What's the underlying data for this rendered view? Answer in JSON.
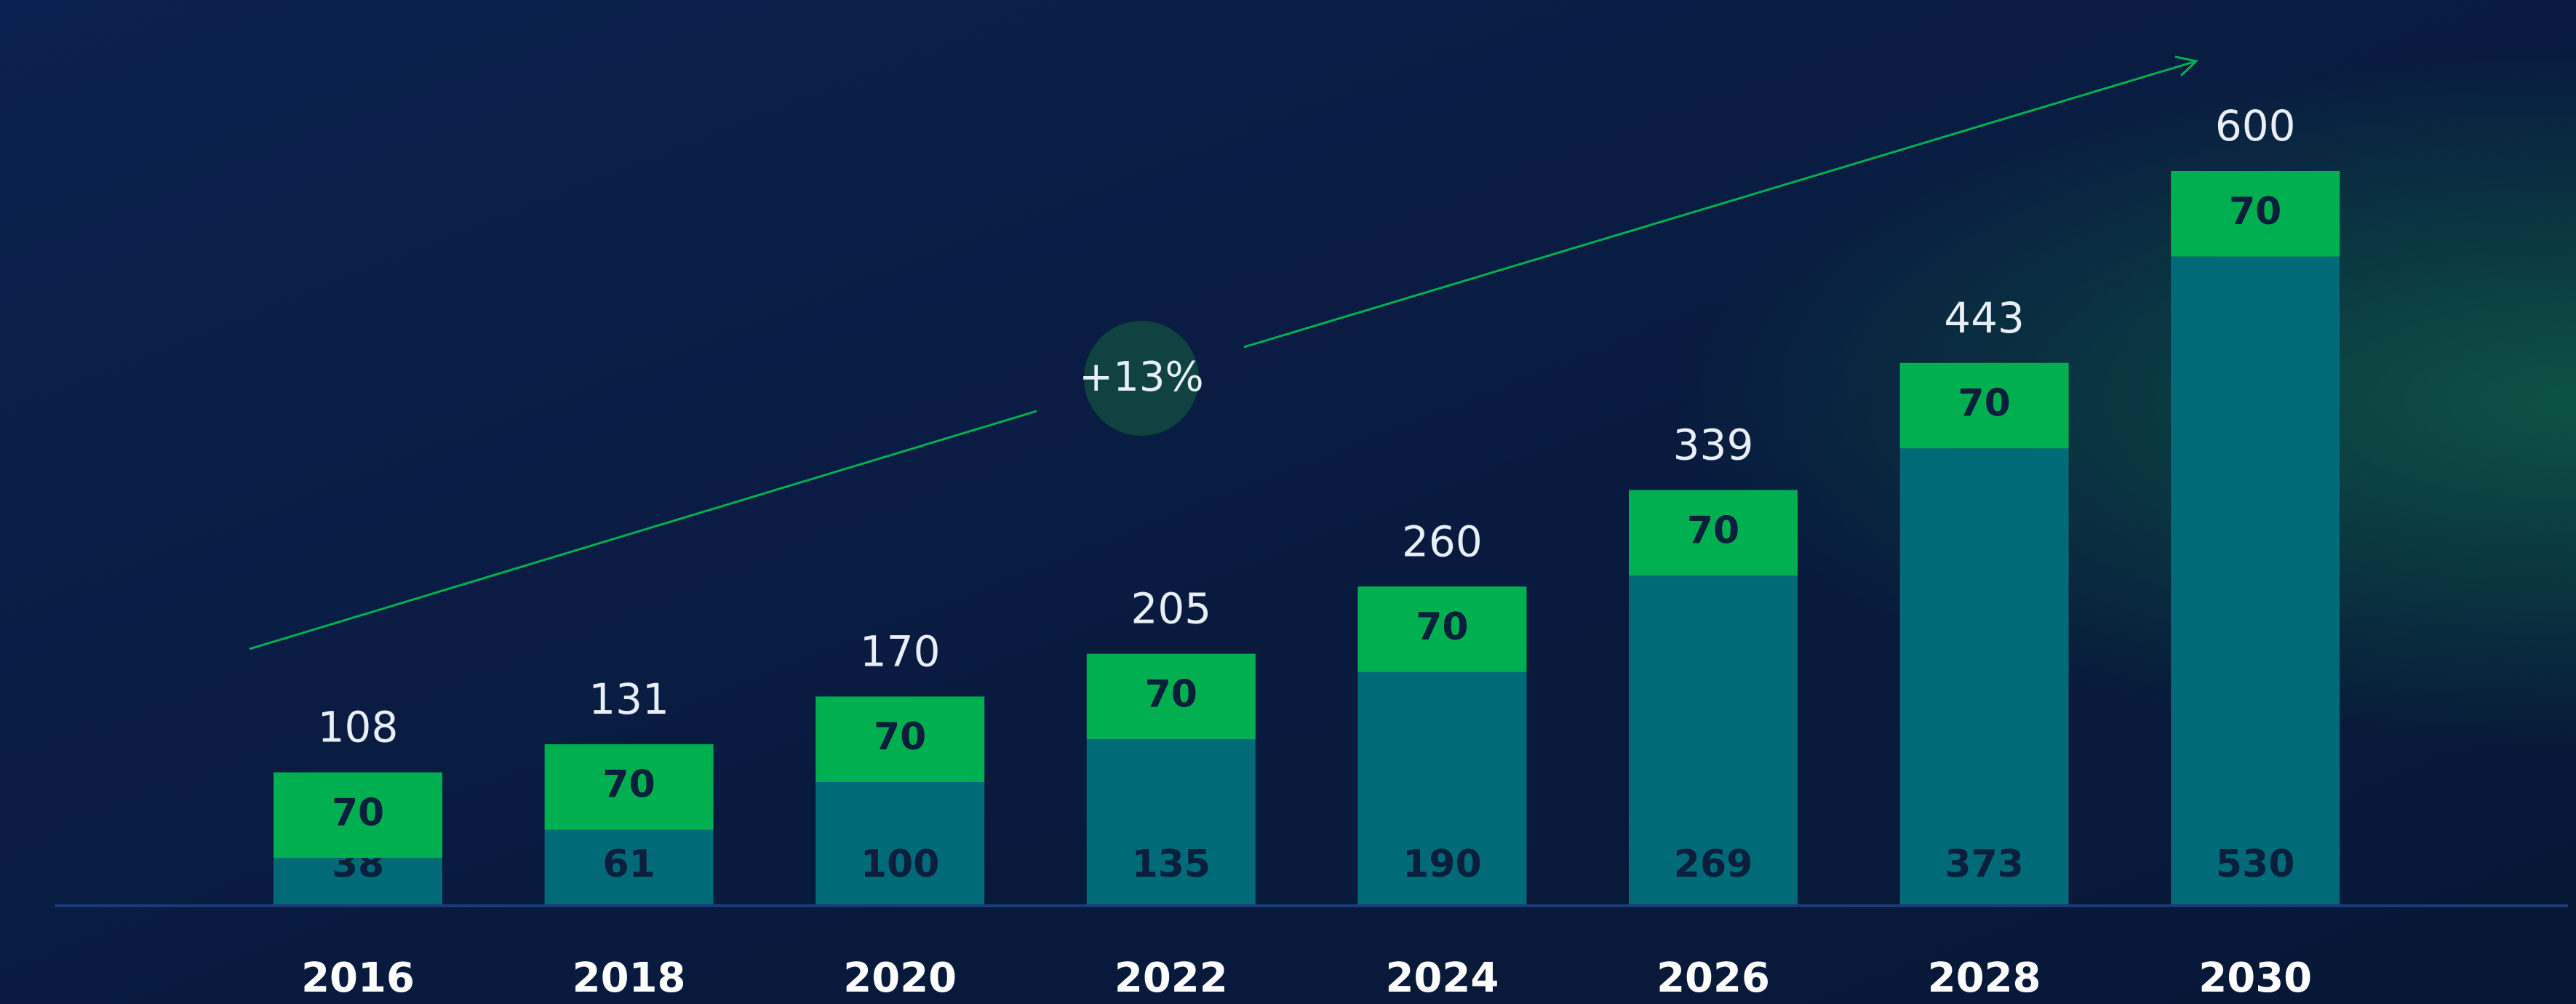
{
  "chart_data": {
    "type": "stacked-bar",
    "categories": [
      "2016",
      "2018",
      "2020",
      "2022",
      "2024",
      "2026",
      "2028",
      "2030"
    ],
    "series": [
      {
        "color": "#006a78",
        "values": [
          38,
          61,
          100,
          135,
          190,
          269,
          373,
          530
        ]
      },
      {
        "color": "#00b050",
        "values": [
          70,
          70,
          70,
          70,
          70,
          70,
          70,
          70
        ]
      }
    ],
    "totals": [
      108,
      131,
      170,
      205,
      260,
      339,
      443,
      600
    ],
    "annotation": "+13%",
    "ylim": [
      0,
      600
    ]
  }
}
